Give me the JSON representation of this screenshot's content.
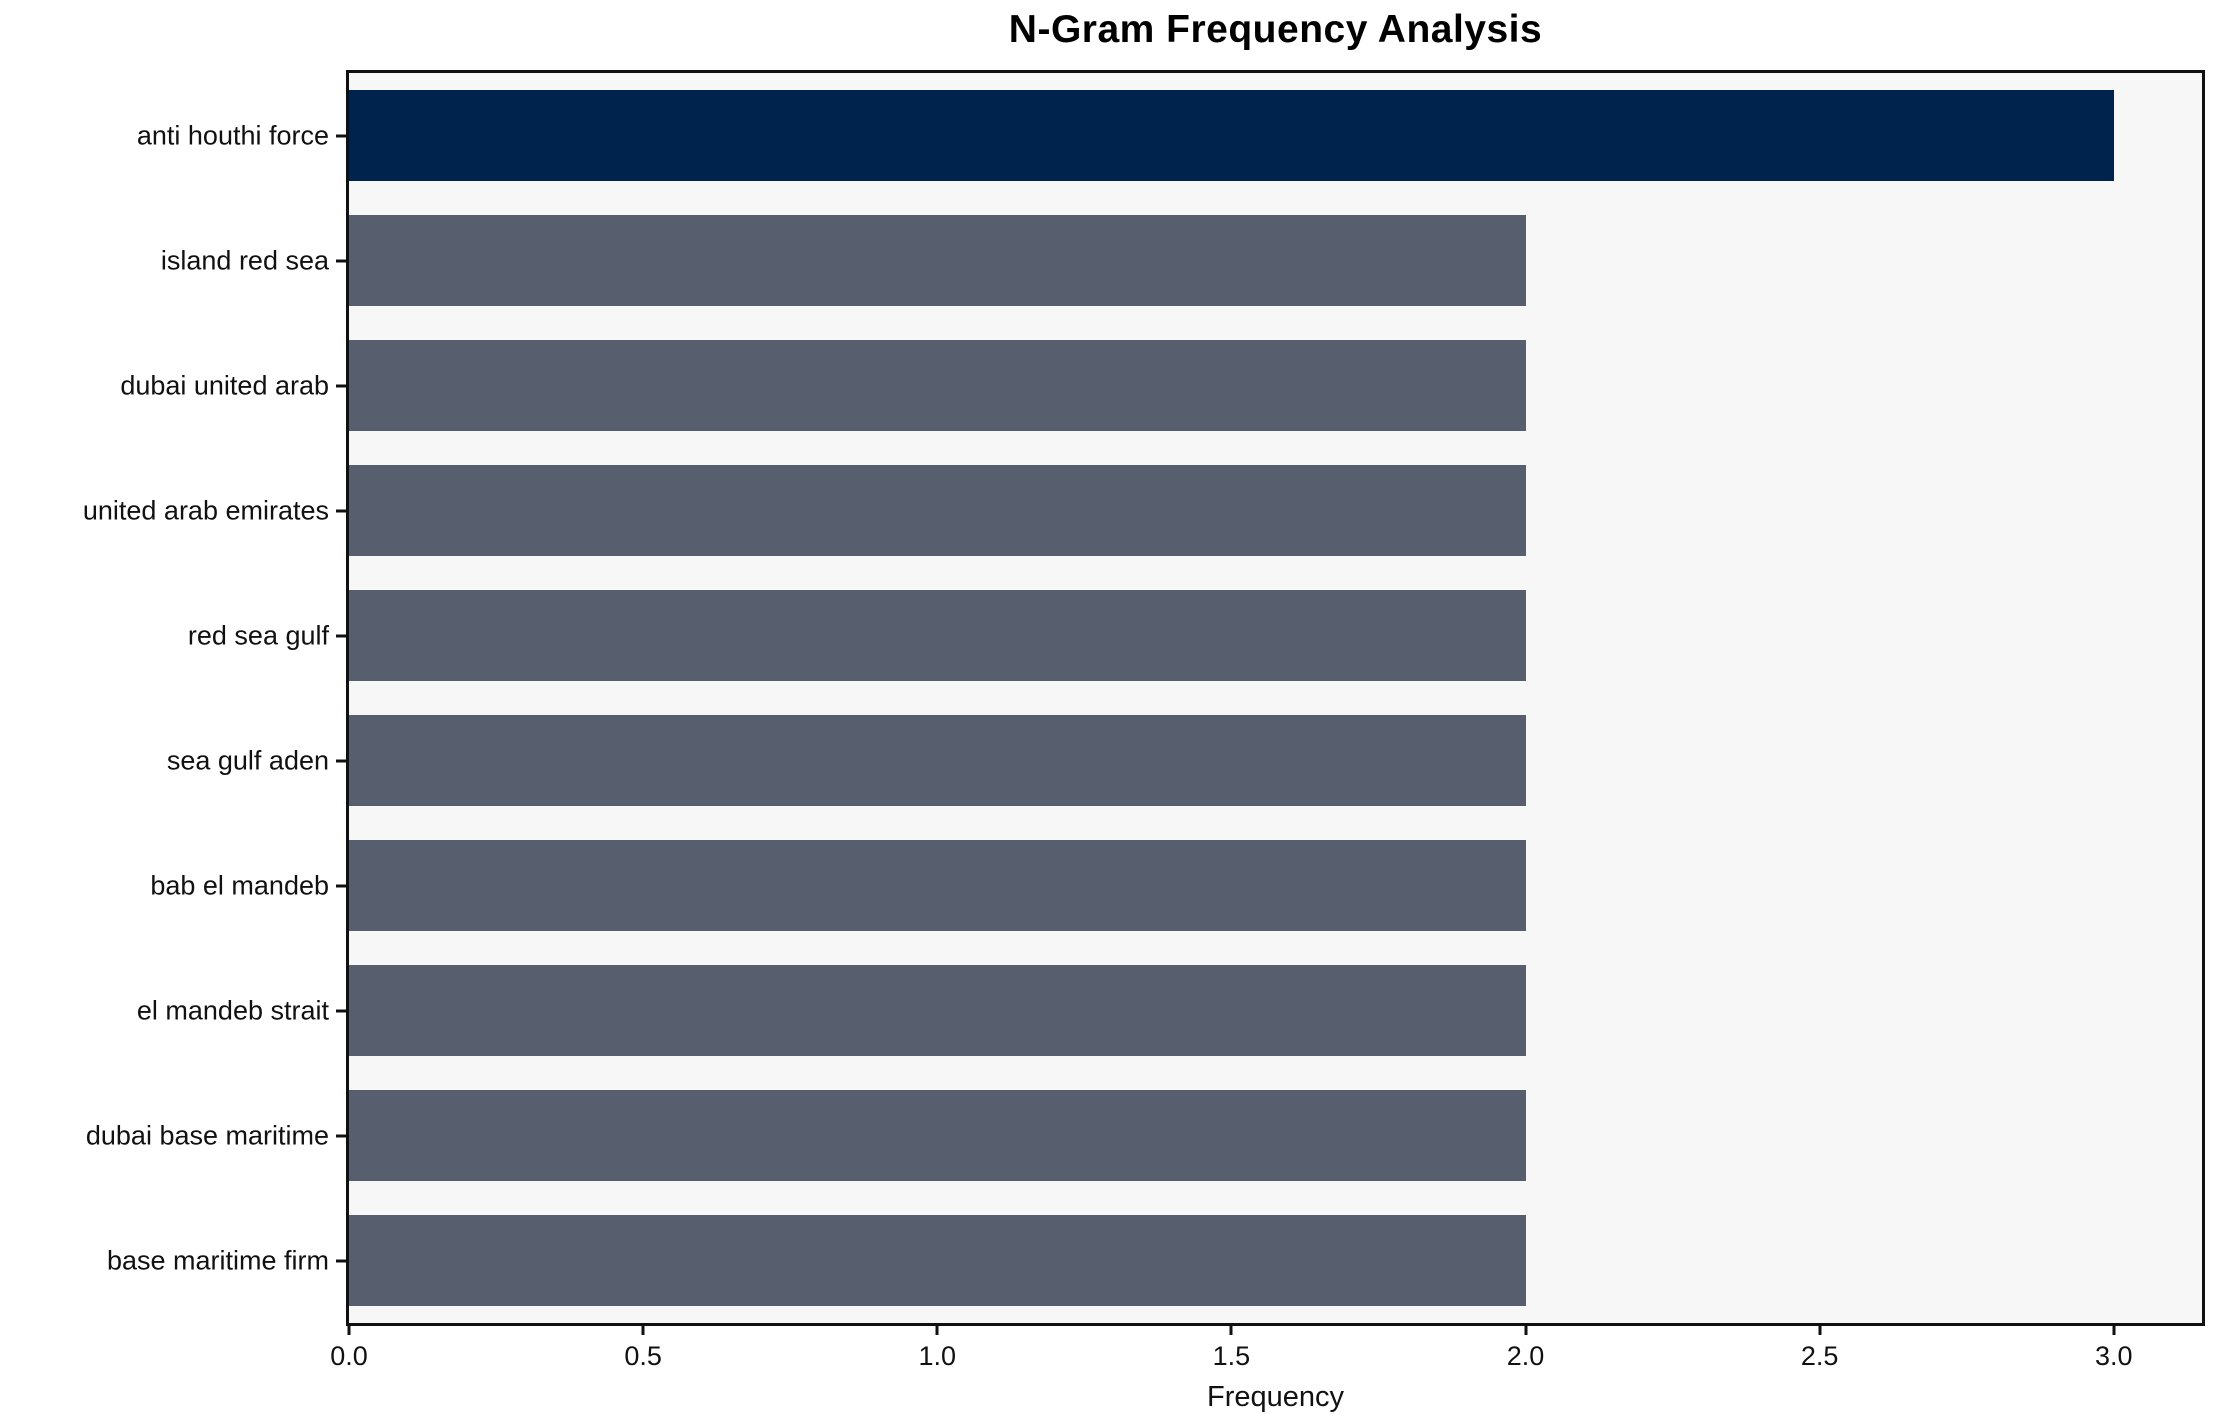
{
  "title": "N-Gram Frequency Analysis",
  "chart_data": {
    "type": "bar",
    "orientation": "horizontal",
    "title": "N-Gram Frequency Analysis",
    "categories": [
      "anti houthi force",
      "island red sea",
      "dubai united arab",
      "united arab emirates",
      "red sea gulf",
      "sea gulf aden",
      "bab el mandeb",
      "el mandeb strait",
      "dubai base maritime",
      "base maritime firm"
    ],
    "values": [
      3,
      2,
      2,
      2,
      2,
      2,
      2,
      2,
      2,
      2
    ],
    "xlabel": "Frequency",
    "ylabel": "",
    "xlim": [
      0,
      3.15
    ],
    "x_ticks": [
      0.0,
      0.5,
      1.0,
      1.5,
      2.0,
      2.5,
      3.0
    ],
    "x_tick_labels": [
      "0.0",
      "0.5",
      "1.0",
      "1.5",
      "2.0",
      "2.5",
      "3.0"
    ],
    "grid": false,
    "legend": "none",
    "highlight_index": 0,
    "colors": {
      "highlight_bar": "#00234e",
      "default_bar": "#575f6f",
      "plot_background": "#f7f7f8",
      "spine": "#101010",
      "text": "#111111"
    }
  }
}
